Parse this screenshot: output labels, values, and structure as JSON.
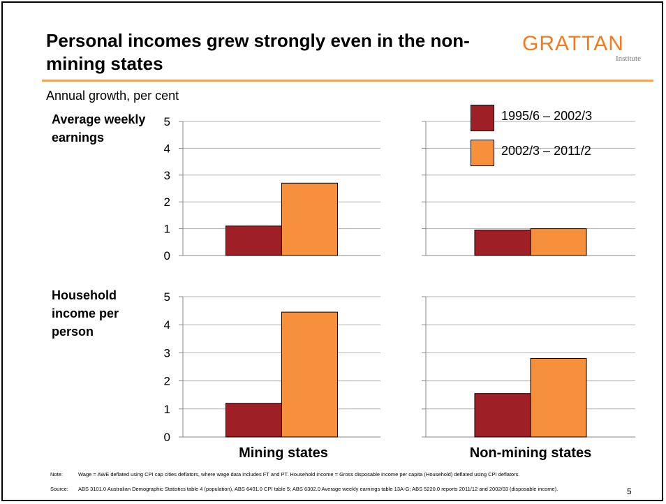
{
  "title": "Personal incomes grew strongly even in the non-mining states",
  "logo": {
    "word": "GRATTAN",
    "sub": "Institute"
  },
  "subtitle": "Annual growth, per cent",
  "colors": {
    "series1": "#9E1F25",
    "series2": "#F6903D",
    "rule": "#F0A65A",
    "logo": "#F47A1F"
  },
  "notes": {
    "note_key": "Note:",
    "note_text": "Wage = AWE deflated using CPI cap cities deflators, where wage data includes FT and PT. Household income = Gross disposable income per capita (Household) deflated using CPI deflators.",
    "source_key": "Source:",
    "source_text": "ABS 3101.0 Australian Demographic Statistics table 4 (population), ABS 6401.0 CPI table 5; ABS 6302.0 Average weekly earnings table 13A-G; ABS 5220.0 reports 2011/12 and 2002/03 (disposable income)."
  },
  "page_number": "5",
  "chart_data": {
    "type": "bar",
    "rows": [
      "Average weekly earnings",
      "Household income per person"
    ],
    "categories": [
      "Mining states",
      "Non-mining states"
    ],
    "legend": [
      "1995/6 – 2002/3",
      "2002/3 – 2011/2"
    ],
    "legend_placement": "top-right",
    "ylim": [
      0,
      5
    ],
    "yticks": [
      "0",
      "1",
      "2",
      "3",
      "4",
      "5"
    ],
    "grid": true,
    "panels": [
      {
        "row": "Average weekly earnings",
        "category": "Mining states",
        "values": [
          1.1,
          2.7
        ]
      },
      {
        "row": "Average weekly earnings",
        "category": "Non-mining states",
        "values": [
          0.95,
          1.0
        ]
      },
      {
        "row": "Household income per person",
        "category": "Mining states",
        "values": [
          1.2,
          4.45
        ]
      },
      {
        "row": "Household income per person",
        "category": "Non-mining states",
        "values": [
          1.55,
          2.8
        ]
      }
    ]
  }
}
